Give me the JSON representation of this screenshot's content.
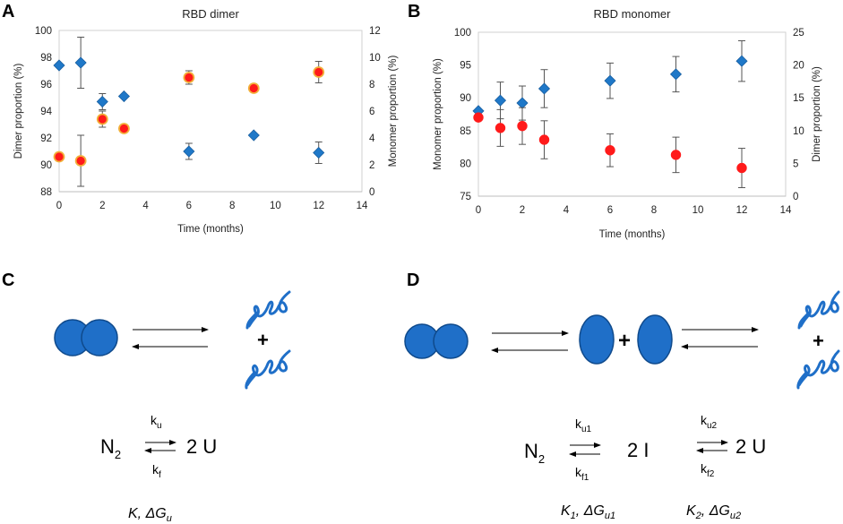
{
  "panels": {
    "A": "A",
    "B": "B",
    "C": "C",
    "D": "D"
  },
  "chart_data": [
    {
      "type": "scatter",
      "title": "RBD dimer",
      "xlabel": "Time (months)",
      "ylabel": "Dimer proportion (%)",
      "y2label": "Monomer proportion (%)",
      "xlim": [
        0,
        14
      ],
      "ylim": [
        88,
        100
      ],
      "y2lim": [
        0,
        12
      ],
      "x_ticks": [
        "0",
        "2",
        "4",
        "6",
        "8",
        "10",
        "12",
        "14"
      ],
      "y_ticks": [
        "88",
        "90",
        "92",
        "94",
        "96",
        "98",
        "100"
      ],
      "y2_ticks": [
        "0",
        "2",
        "4",
        "6",
        "8",
        "10",
        "12"
      ],
      "series": [
        {
          "name": "Dimer proportion",
          "axis": "left",
          "marker": "diamond",
          "color": "#1f78c8",
          "x": [
            0,
            1,
            2,
            3,
            6,
            9,
            12
          ],
          "y": [
            97.4,
            97.6,
            94.7,
            95.1,
            91.0,
            92.2,
            90.9
          ],
          "err": [
            0.0,
            1.9,
            0.6,
            0.0,
            0.6,
            0.0,
            0.8
          ]
        },
        {
          "name": "Monomer proportion",
          "axis": "right",
          "marker": "circle",
          "color": "#ff1a1a",
          "x": [
            0,
            1,
            2,
            3,
            6,
            9,
            12
          ],
          "y": [
            2.6,
            2.3,
            5.4,
            4.7,
            8.5,
            7.7,
            8.9
          ],
          "err": [
            0.0,
            1.9,
            0.6,
            0.0,
            0.5,
            0.0,
            0.8
          ]
        }
      ]
    },
    {
      "type": "scatter",
      "title": "RBD monomer",
      "xlabel": "Time (months)",
      "ylabel": "Monomer proportion (%)",
      "y2label": "Dimer proportion (%)",
      "xlim": [
        0,
        14
      ],
      "ylim": [
        75,
        100
      ],
      "y2lim": [
        0,
        25
      ],
      "x_ticks": [
        "0",
        "2",
        "4",
        "6",
        "8",
        "10",
        "12",
        "14"
      ],
      "y_ticks": [
        "75",
        "80",
        "85",
        "90",
        "95",
        "100"
      ],
      "y2_ticks": [
        "0",
        "5",
        "10",
        "15",
        "20",
        "25"
      ],
      "series": [
        {
          "name": "Dimer proportion",
          "axis": "right",
          "marker": "diamond",
          "color": "#1f78c8",
          "x": [
            0,
            1,
            2,
            3,
            6,
            9,
            12
          ],
          "y": [
            13.0,
            14.6,
            14.2,
            16.4,
            17.6,
            18.6,
            20.6
          ],
          "err": [
            0.0,
            2.8,
            2.6,
            2.9,
            2.7,
            2.7,
            3.1
          ]
        },
        {
          "name": "Monomer proportion",
          "axis": "left",
          "marker": "circle",
          "color": "#ff1a1a",
          "x": [
            0,
            1,
            2,
            3,
            6,
            9,
            12
          ],
          "y": [
            87.0,
            85.4,
            85.7,
            83.6,
            82.0,
            81.3,
            79.3
          ],
          "err": [
            0.0,
            2.8,
            2.8,
            2.9,
            2.5,
            2.7,
            3.0
          ]
        }
      ]
    }
  ],
  "scheme_c": {
    "plus": "+",
    "N": "N",
    "N_sub": "2",
    "U_label": "2 U",
    "k_u": "k",
    "k_u_sub": "u",
    "k_f": "k",
    "k_f_sub": "f",
    "constant": "K, ΔG",
    "constant_sub": "u"
  },
  "scheme_d": {
    "plus1": "+",
    "plus2": "+",
    "N": "N",
    "N_sub": "2",
    "I_label": "2 I",
    "U_label": "2 U",
    "k_u1": "k",
    "k_u1_sub": "u1",
    "k_f1": "k",
    "k_f1_sub": "f1",
    "k_u2": "k",
    "k_u2_sub": "u2",
    "k_f2": "k",
    "k_f2_sub": "f2",
    "constant1": "K",
    "constant1_sub": "1",
    "constant1_tail": ", ΔG",
    "constant1_tail_sub": "u1",
    "constant2": "K",
    "constant2_sub": "2",
    "constant2_tail": ", ΔG",
    "constant2_tail_sub": "u2"
  },
  "colors": {
    "blue": "#1f78c8",
    "red": "#ff1a1a",
    "orange_ring": "#f2b03a",
    "bead": "#1f6fc8",
    "bead_edge": "#0f4a8c"
  }
}
